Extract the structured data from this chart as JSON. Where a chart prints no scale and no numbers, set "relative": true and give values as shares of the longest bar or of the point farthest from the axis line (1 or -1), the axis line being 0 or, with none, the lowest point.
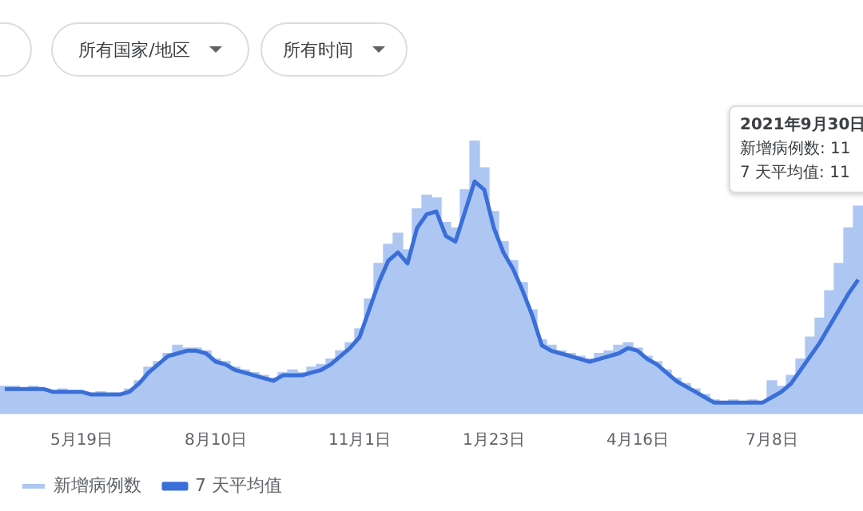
{
  "chart_data": {
    "type": "bar",
    "relative": true,
    "legend": "bottom left",
    "annotations": [
      "所有国家/地区",
      "所有时间",
      "2021年9月30日",
      "新增病例数: 11",
      "7 天平均值: 11"
    ],
    "categories": [
      null,
      null,
      null,
      null,
      null,
      null,
      null,
      null,
      "5月19日",
      null,
      null,
      null,
      null,
      null,
      null,
      null,
      null,
      null,
      null,
      null,
      null,
      null,
      "8月10日",
      null,
      null,
      null,
      null,
      null,
      null,
      null,
      null,
      null,
      null,
      null,
      null,
      null,
      null,
      "11月1日",
      null,
      null,
      null,
      null,
      null,
      null,
      null,
      null,
      null,
      null,
      null,
      null,
      null,
      "1月23日",
      null,
      null,
      null,
      null,
      null,
      null,
      null,
      null,
      null,
      null,
      null,
      null,
      null,
      null,
      "4月16日",
      null,
      null,
      null,
      null,
      null,
      null,
      null,
      null,
      null,
      null,
      null,
      null,
      null,
      "7月8日",
      null,
      null,
      null,
      null,
      null,
      null,
      null,
      null,
      null
    ],
    "series": [
      {
        "name": "新增病例数",
        "color": "#aec6f2",
        "values": [
          0.1,
          0.1,
          0.09,
          0.1,
          0.09,
          0.08,
          0.09,
          0.08,
          0.08,
          0.07,
          0.08,
          0.07,
          0.07,
          0.09,
          0.12,
          0.17,
          0.19,
          0.22,
          0.25,
          0.24,
          0.24,
          0.23,
          0.2,
          0.19,
          0.17,
          0.16,
          0.15,
          0.14,
          0.13,
          0.15,
          0.16,
          0.15,
          0.17,
          0.18,
          0.2,
          0.23,
          0.26,
          0.31,
          0.42,
          0.55,
          0.62,
          0.66,
          0.6,
          0.75,
          0.8,
          0.79,
          0.7,
          0.68,
          0.82,
          1.0,
          0.9,
          0.74,
          0.63,
          0.56,
          0.48,
          0.38,
          0.27,
          0.25,
          0.23,
          0.22,
          0.21,
          0.2,
          0.22,
          0.23,
          0.25,
          0.26,
          0.24,
          0.21,
          0.19,
          0.16,
          0.13,
          0.11,
          0.09,
          0.07,
          0.05,
          0.04,
          0.05,
          0.04,
          0.05,
          0.04,
          0.12,
          0.1,
          0.14,
          0.2,
          0.28,
          0.35,
          0.45,
          0.55,
          0.68,
          0.76
        ]
      },
      {
        "name": "7 天平均值",
        "type": "line",
        "color": "#3a6fd8",
        "values": [
          0.09,
          0.09,
          0.09,
          0.09,
          0.09,
          0.08,
          0.08,
          0.08,
          0.08,
          0.07,
          0.07,
          0.07,
          0.07,
          0.08,
          0.11,
          0.15,
          0.18,
          0.21,
          0.22,
          0.23,
          0.23,
          0.22,
          0.19,
          0.18,
          0.16,
          0.15,
          0.14,
          0.13,
          0.12,
          0.14,
          0.14,
          0.14,
          0.15,
          0.16,
          0.18,
          0.21,
          0.24,
          0.28,
          0.38,
          0.48,
          0.56,
          0.59,
          0.55,
          0.68,
          0.73,
          0.74,
          0.65,
          0.63,
          0.74,
          0.85,
          0.82,
          0.68,
          0.59,
          0.53,
          0.45,
          0.36,
          0.25,
          0.23,
          0.22,
          0.21,
          0.2,
          0.19,
          0.2,
          0.21,
          0.22,
          0.24,
          0.23,
          0.2,
          0.18,
          0.15,
          0.12,
          0.1,
          0.08,
          0.06,
          0.04,
          0.04,
          0.04,
          0.04,
          0.04,
          0.04,
          0.06,
          0.08,
          0.11,
          0.16,
          0.21,
          0.26,
          0.32,
          0.38,
          0.44,
          0.49
        ]
      }
    ]
  }
}
